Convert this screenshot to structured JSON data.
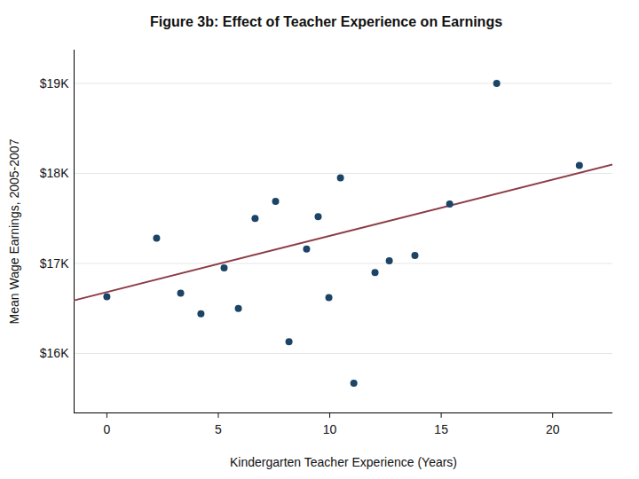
{
  "chart_data": {
    "type": "scatter",
    "title": "Figure 3b: Effect of Teacher Experience on Earnings",
    "x_label": "Kindergarten Teacher Experience (Years)",
    "y_label": "Mean Wage Earnings, 2005-2007",
    "x": [
      0,
      2.23,
      3.31,
      4.22,
      5.26,
      5.9,
      6.65,
      7.57,
      8.17,
      8.96,
      9.48,
      9.96,
      10.48,
      11.08,
      12.03,
      12.67,
      13.82,
      15.38,
      17.49,
      21.2
    ],
    "values": [
      16630,
      17280,
      16670,
      16440,
      16950,
      16500,
      17500,
      17690,
      16130,
      17160,
      17520,
      16620,
      17950,
      15670,
      16900,
      17030,
      17090,
      17660,
      19000,
      18090
    ],
    "color": "#1c4466",
    "marker": "circle",
    "trend_line": {
      "x": [
        -1.47,
        22.7
      ],
      "values": [
        16590,
        18100
      ],
      "color": "#8c3b46"
    },
    "xlim": [
      -1.47,
      22.7
    ],
    "xticks": [
      0,
      5,
      10,
      15,
      20
    ],
    "ylim": [
      15340,
      19370
    ],
    "yticks": [
      {
        "value": 16000,
        "label": "$16K"
      },
      {
        "value": 17000,
        "label": "$17K"
      },
      {
        "value": 18000,
        "label": "$18K"
      },
      {
        "value": 19000,
        "label": "$19K"
      }
    ],
    "grid": true
  }
}
